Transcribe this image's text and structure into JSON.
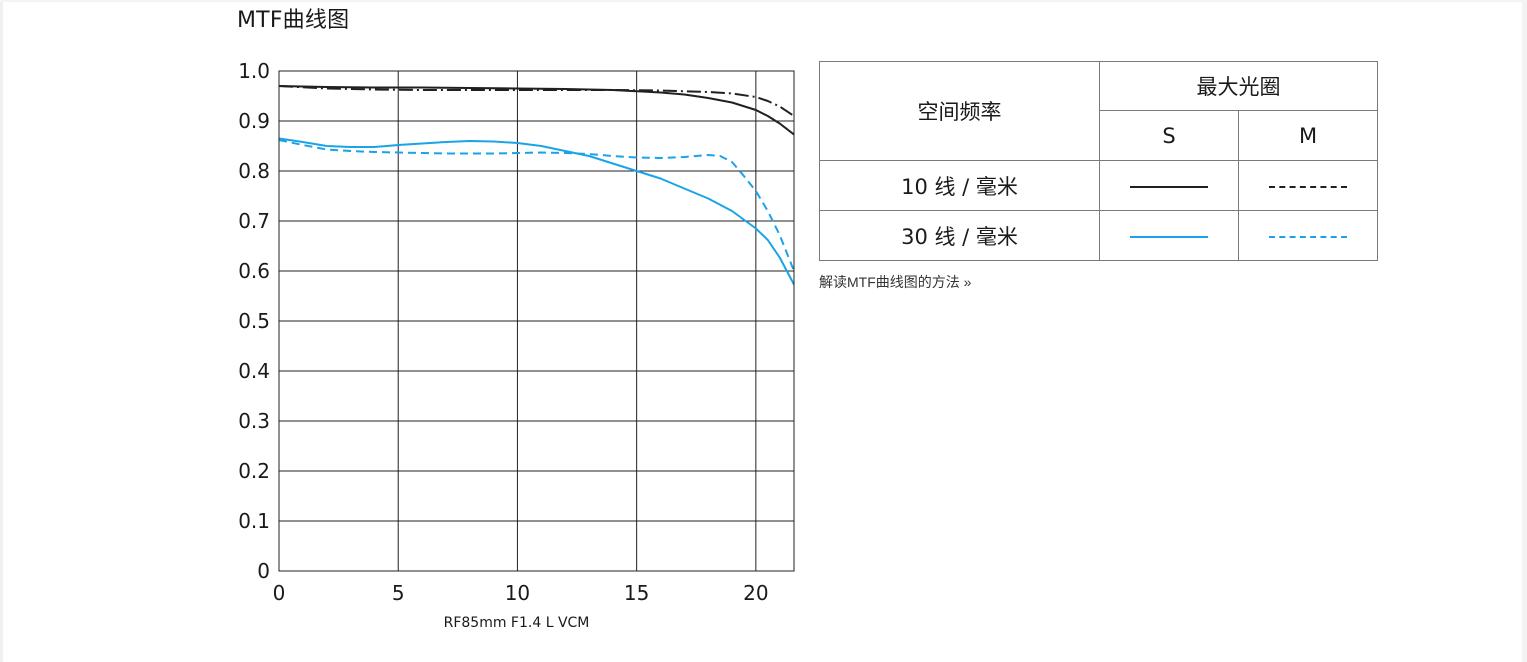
{
  "page": {
    "section_title": "MTF曲线图"
  },
  "chart_data": {
    "type": "line",
    "title": "",
    "caption": "RF85mm F1.4 L VCM",
    "xlabel": "",
    "ylabel": "",
    "xlim": [
      0,
      21.6
    ],
    "ylim": [
      0,
      1.0
    ],
    "grid": true,
    "x_ticks": [
      "0",
      "5",
      "10",
      "15",
      "20"
    ],
    "y_ticks": [
      "1.0",
      "0.9",
      "0.8",
      "0.7",
      "0.6",
      "0.5",
      "0.4",
      "0.3",
      "0.2",
      "0.1",
      "0"
    ],
    "series": [
      {
        "key": "10-s",
        "color": "#231f20",
        "dash": "solid",
        "x": [
          0,
          2,
          4,
          6,
          8,
          10,
          12,
          14,
          16,
          17,
          18,
          19,
          20,
          20.5,
          21,
          21.6
        ],
        "y": [
          0.97,
          0.968,
          0.967,
          0.967,
          0.966,
          0.965,
          0.964,
          0.962,
          0.957,
          0.953,
          0.946,
          0.937,
          0.922,
          0.91,
          0.895,
          0.873
        ]
      },
      {
        "key": "10-m",
        "color": "#231f20",
        "dash": "dashdot",
        "x": [
          0,
          2,
          4,
          6,
          8,
          10,
          12,
          14,
          16,
          18,
          19,
          20,
          20.5,
          21,
          21.6
        ],
        "y": [
          0.97,
          0.965,
          0.963,
          0.962,
          0.962,
          0.962,
          0.962,
          0.962,
          0.961,
          0.958,
          0.955,
          0.948,
          0.94,
          0.929,
          0.91
        ]
      },
      {
        "key": "30-s",
        "color": "#1aa3e8",
        "dash": "solid",
        "x": [
          0,
          1,
          2,
          3,
          4,
          5,
          6,
          7,
          8,
          9,
          10,
          11,
          12,
          13,
          14,
          15,
          16,
          17,
          18,
          19,
          20,
          20.5,
          21,
          21.6
        ],
        "y": [
          0.865,
          0.858,
          0.85,
          0.848,
          0.848,
          0.852,
          0.855,
          0.858,
          0.86,
          0.859,
          0.856,
          0.85,
          0.84,
          0.83,
          0.815,
          0.8,
          0.785,
          0.765,
          0.745,
          0.72,
          0.685,
          0.662,
          0.627,
          0.573
        ]
      },
      {
        "key": "30-m",
        "color": "#1aa3e8",
        "dash": "dashed",
        "x": [
          0,
          1,
          2,
          3,
          4,
          5,
          6,
          7,
          8,
          9,
          10,
          11,
          12,
          13,
          14,
          15,
          16,
          17,
          18,
          18.5,
          19,
          19.5,
          20,
          20.5,
          21,
          21.6
        ],
        "y": [
          0.862,
          0.852,
          0.843,
          0.84,
          0.838,
          0.837,
          0.836,
          0.835,
          0.835,
          0.835,
          0.836,
          0.837,
          0.836,
          0.834,
          0.83,
          0.827,
          0.826,
          0.828,
          0.832,
          0.83,
          0.818,
          0.79,
          0.76,
          0.72,
          0.672,
          0.6
        ]
      }
    ]
  },
  "legend_table": {
    "header": "空间频率",
    "aperture_header": "最大光圈",
    "col_s": "S",
    "col_m": "M",
    "rows": [
      {
        "label": "10 线 / 毫米",
        "color": "#231f20"
      },
      {
        "label": "30 线 / 毫米",
        "color": "#1aa3e8"
      }
    ]
  },
  "help_link": {
    "label": "解读MTF曲线图的方法 »"
  }
}
